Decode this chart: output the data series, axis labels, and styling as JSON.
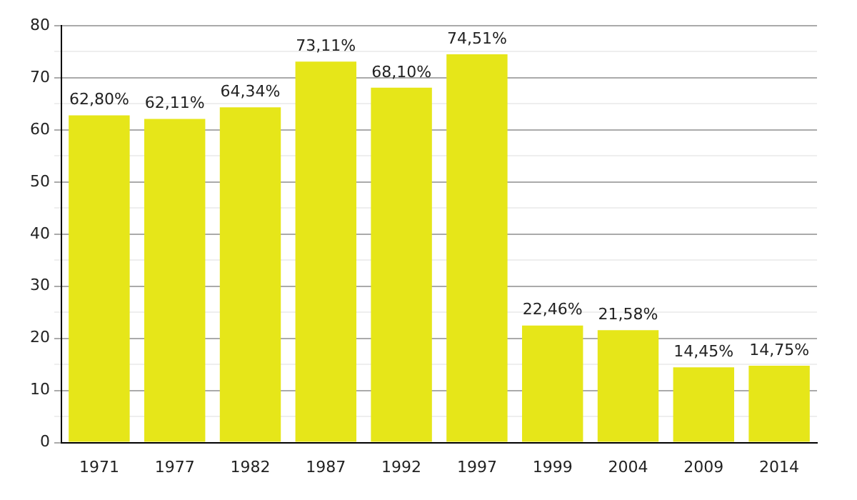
{
  "chart_data": {
    "type": "bar",
    "categories": [
      "1971",
      "1977",
      "1982",
      "1987",
      "1992",
      "1997",
      "1999",
      "2004",
      "2009",
      "2014"
    ],
    "values": [
      62.8,
      62.11,
      64.34,
      73.11,
      68.1,
      74.51,
      22.46,
      21.58,
      14.45,
      14.75
    ],
    "value_labels": [
      "62,80%",
      "62,11%",
      "64,34%",
      "73,11%",
      "68,10%",
      "74,51%",
      "22,46%",
      "21,58%",
      "14,45%",
      "14,75%"
    ],
    "color": "#e6e619",
    "ylim": [
      0,
      80
    ],
    "yticks": [
      0,
      {
        "value": 5,
        "label": null
      },
      10,
      {
        "value": 15,
        "label": null
      },
      20,
      {
        "value": 25,
        "label": null
      },
      30,
      {
        "value": 35,
        "label": null
      },
      40,
      {
        "value": 45,
        "label": null
      },
      50,
      {
        "value": 55,
        "label": null
      },
      60,
      {
        "value": 65,
        "label": null
      },
      70,
      {
        "value": 75,
        "label": null
      },
      80
    ],
    "grid": "y",
    "legend": false
  }
}
